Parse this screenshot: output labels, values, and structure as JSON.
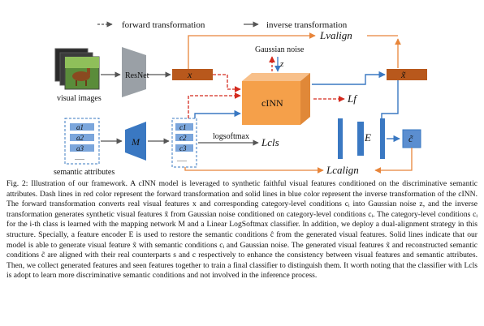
{
  "legend": {
    "forward": "forward transformation",
    "inverse": "inverse transformation"
  },
  "labels": {
    "visual_images": "visual images",
    "resnet": "ResNet",
    "x": "x",
    "x_tilde": "x̃",
    "gaussian_noise": "Gaussian noise",
    "z": "z",
    "cinn": "cINN",
    "m": "M",
    "e": "E",
    "c_tilde": "c̃",
    "semantic_attributes": "semantic attributes",
    "logsoftmax": "logsoftmax",
    "attr_1": "a1",
    "attr_2": "a2",
    "attr_3": "a3",
    "attr_more": "......",
    "cond_1": "c1",
    "cond_2": "c2",
    "cond_3": "c3",
    "cond_more": "......",
    "loss_valign": "Lvalign",
    "loss_f": "Lf",
    "loss_cls": "Lcls",
    "loss_calign": "Lcalign"
  },
  "colors": {
    "forward_red": "#d42a1e",
    "inverse_blue": "#3a78c2",
    "cinn_orange": "#f5a04a",
    "feature_brown": "#b8581c",
    "align_orange": "#e8853a",
    "net_gray": "#9aa0a6"
  },
  "caption": "Fig. 2: Illustration of our framework. A cINN model is leveraged to synthetic faithful visual features conditioned on the discriminative semantic attributes. Dash lines in red color represent the forward transformation and solid lines in blue color represent the inverse transformation of the cINN. The forward transformation converts real visual features x and corresponding category-level conditions cᵢ into Gaussian noise z, and the inverse transformation generates synthetic visual features x̃ from Gaussian noise conditioned on category-level conditions cᵢ. The category-level conditions cᵢ for the i-th class is learned with the mapping network M and a Linear LogSoftmax classifier. In addition, we deploy a dual-alignment strategy in this structure. Specially, a feature encoder E is used to restore the semantic conditions ĉ from the generated visual features. Solid lines indicate that our model is able to generate visual feature x̃ with semantic conditions cᵢ and Gaussian noise. The generated visual features x̃ and reconstructed semantic conditions c̃ are aligned with their real counterparts s and c respectively to enhance the consistency between visual features and semantic attributes. Then, we collect generated features and seen features together to train a final classifier to distinguish them. It worth noting that the classifier with Lcls is adopt to learn more discriminative semantic conditions and not involved in the inference process."
}
